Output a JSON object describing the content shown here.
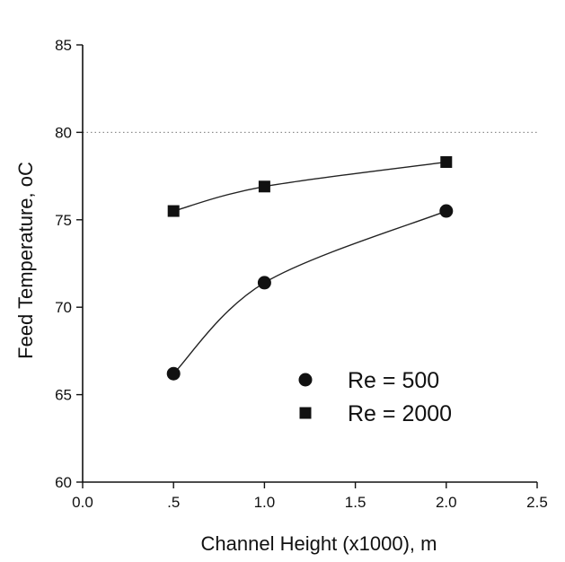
{
  "chart_data": {
    "type": "scatter",
    "xlabel": "Channel Height (x1000), m",
    "ylabel_main": "Feed Temperature, ",
    "ylabel_unit": "oC",
    "xlim": [
      0.0,
      2.5
    ],
    "ylim": [
      60,
      85
    ],
    "x_ticks": [
      0.0,
      0.5,
      1.0,
      1.5,
      2.0,
      2.5
    ],
    "x_tick_labels": [
      "0.0",
      ".5",
      "1.0",
      "1.5",
      "2.0",
      "2.5"
    ],
    "y_ticks": [
      60,
      65,
      70,
      75,
      80,
      85
    ],
    "y_tick_labels": [
      "60",
      "65",
      "70",
      "75",
      "80",
      "85"
    ],
    "reference_line_y": 80,
    "grid": false,
    "legend_position": "bottom-right",
    "series": [
      {
        "name": "Re = 500",
        "marker": "circle",
        "x": [
          0.5,
          1.0,
          2.0
        ],
        "y": [
          66.2,
          71.4,
          75.5
        ]
      },
      {
        "name": "Re = 2000",
        "marker": "square",
        "x": [
          0.5,
          1.0,
          2.0
        ],
        "y": [
          75.5,
          76.9,
          78.3
        ]
      }
    ]
  }
}
